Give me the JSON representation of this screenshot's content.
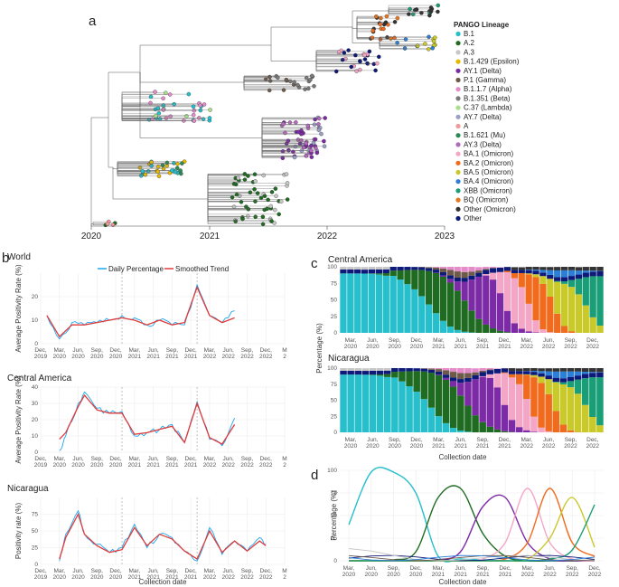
{
  "panels": {
    "a": {
      "letter": "a",
      "years": [
        "2020",
        "2021",
        "2022",
        "2023"
      ],
      "legend_title": "PANGO Lineage",
      "lineages": [
        {
          "name": "B.1",
          "color": "#26bfcb"
        },
        {
          "name": "A.2",
          "color": "#1f6b22"
        },
        {
          "name": "A.3",
          "color": "#c7c7c7"
        },
        {
          "name": "B.1.429 (Epsilon)",
          "color": "#e6b800"
        },
        {
          "name": "AY.1 (Delta)",
          "color": "#7d2aa6"
        },
        {
          "name": "P.1 (Gamma)",
          "color": "#6e5a4a"
        },
        {
          "name": "B.1.1.7 (Alpha)",
          "color": "#e48bc9"
        },
        {
          "name": "B.1.351 (Beta)",
          "color": "#7a7a7a"
        },
        {
          "name": "C.37 (Lambda)",
          "color": "#a8e08a"
        },
        {
          "name": "AY.7 (Delta)",
          "color": "#9aa0c8"
        },
        {
          "name": "A",
          "color": "#f29a9a"
        },
        {
          "name": "B.1.621 (Mu)",
          "color": "#2e8b57"
        },
        {
          "name": "AY.3 (Delta)",
          "color": "#b46bbd"
        },
        {
          "name": "BA.1 (Omicron)",
          "color": "#f4a6c6"
        },
        {
          "name": "BA.2 (Omicron)",
          "color": "#f06b1d"
        },
        {
          "name": "BA.5 (Omicron)",
          "color": "#c9c92a"
        },
        {
          "name": "BA.4 (Omicron)",
          "color": "#2b7fd6"
        },
        {
          "name": "XBB (Omicron)",
          "color": "#1a9e77"
        },
        {
          "name": "BQ (Omicron)",
          "color": "#e8761c"
        },
        {
          "name": "Other (Omicron)",
          "color": "#333333"
        },
        {
          "name": "Other",
          "color": "#0e1a7a"
        }
      ]
    },
    "b": {
      "letter": "b",
      "legend": {
        "daily": "Daily Percentage",
        "smooth": "Smoothed Trend",
        "daily_color": "#1ea5f0",
        "smooth_color": "#e03a3a"
      },
      "xlabel": "Collection date",
      "x_ticks": [
        "Dec,\n2019",
        "Mar,\n2020",
        "Jun,\n2020",
        "Sep,\n2020",
        "Dec,\n2020",
        "Mar,\n2021",
        "Jun,\n2021",
        "Sep,\n2021",
        "Dec,\n2021",
        "Mar,\n2022",
        "Jun,\n2022",
        "Sep,\n2022",
        "Dec,\n2022",
        "M\n2"
      ],
      "subplots": [
        {
          "title": "World",
          "ylabel": "Average Positivity Rate (%)",
          "ylim": [
            0,
            30
          ],
          "yticks": [
            "0",
            "10",
            "20"
          ]
        },
        {
          "title": "Central America",
          "ylabel": "Average Positivity Rate (%)",
          "ylim": [
            0,
            40
          ],
          "yticks": [
            "0",
            "10",
            "20",
            "30",
            "40"
          ]
        },
        {
          "title": "Nicaragua",
          "ylabel": "Positivity rate (%)",
          "ylim": [
            0,
            100
          ],
          "yticks": [
            "0",
            "25",
            "50",
            "75"
          ]
        }
      ]
    },
    "c": {
      "letter": "c",
      "ylabel": "Percentage (%)",
      "xlabel": "Collection date",
      "yticks": [
        "0",
        "25",
        "50",
        "75",
        "100"
      ],
      "x_ticks": [
        "Mar,\n2020",
        "Jun,\n2020",
        "Sep,\n2020",
        "Dec,\n2020",
        "Mar,\n2021",
        "Jun,\n2021",
        "Sep,\n2021",
        "Dec,\n2021",
        "Mar,\n2022",
        "Jun,\n2022",
        "Sep,\n2022",
        "Dec,\n2022"
      ],
      "subplots": [
        {
          "title": "Central America"
        },
        {
          "title": "Nicaragua"
        }
      ]
    },
    "d": {
      "letter": "d",
      "ylabel": "Percentage (%)",
      "xlabel": "Collection date",
      "yticks": [
        "0",
        "25",
        "50",
        "75",
        "100"
      ],
      "x_ticks": [
        "Mar,\n2020",
        "Jun,\n2020",
        "Sep,\n2020",
        "Dec,\n2020",
        "Mar,\n2021",
        "Jun,\n2021",
        "Sep,\n2021",
        "Dec,\n2021",
        "Mar,\n2022",
        "Jun,\n2022",
        "Sep,\n2022",
        "Dec,\n2022"
      ]
    }
  },
  "chart_data": [
    {
      "type": "line",
      "panel": "b-world",
      "x": [
        "2020-01",
        "2020-03",
        "2020-05",
        "2020-07",
        "2020-09",
        "2020-11",
        "2021-01",
        "2021-03",
        "2021-05",
        "2021-07",
        "2021-09",
        "2021-11",
        "2022-01",
        "2022-03",
        "2022-05",
        "2022-07"
      ],
      "series": [
        {
          "name": "Daily Percentage",
          "values": [
            12,
            2,
            9,
            8,
            9,
            10,
            12,
            11,
            8,
            10,
            8,
            8,
            25,
            12,
            9,
            14
          ]
        },
        {
          "name": "Smoothed Trend",
          "values": [
            12,
            3,
            8,
            8,
            9,
            10,
            11,
            10,
            8,
            10,
            8,
            9,
            24,
            12,
            9,
            11
          ]
        }
      ],
      "ylim": [
        0,
        30
      ]
    },
    {
      "type": "line",
      "panel": "b-central-america",
      "x": [
        "2020-03",
        "2020-04",
        "2020-06",
        "2020-07",
        "2020-09",
        "2020-11",
        "2021-01",
        "2021-03",
        "2021-05",
        "2021-07",
        "2021-09",
        "2021-11",
        "2022-01",
        "2022-03",
        "2022-05",
        "2022-07"
      ],
      "series": [
        {
          "name": "Daily Percentage",
          "values": [
            1,
            10,
            30,
            37,
            27,
            24,
            25,
            10,
            12,
            14,
            17,
            6,
            31,
            8,
            4,
            21
          ]
        },
        {
          "name": "Smoothed Trend",
          "values": [
            8,
            12,
            28,
            35,
            26,
            24,
            24,
            11,
            12,
            14,
            16,
            6,
            30,
            9,
            5,
            17
          ]
        }
      ],
      "ylim": [
        0,
        40
      ]
    },
    {
      "type": "line",
      "panel": "b-nicaragua",
      "x": [
        "2020-03",
        "2020-04",
        "2020-06",
        "2020-07",
        "2020-09",
        "2020-11",
        "2021-01",
        "2021-03",
        "2021-05",
        "2021-07",
        "2021-09",
        "2021-11",
        "2022-01",
        "2022-03",
        "2022-05",
        "2022-07",
        "2022-09",
        "2022-11",
        "2022-12"
      ],
      "series": [
        {
          "name": "Daily Percentage",
          "values": [
            5,
            45,
            80,
            45,
            30,
            18,
            25,
            60,
            25,
            45,
            40,
            20,
            5,
            55,
            15,
            35,
            20,
            40,
            30
          ]
        },
        {
          "name": "Smoothed Trend",
          "values": [
            8,
            40,
            75,
            45,
            28,
            18,
            22,
            55,
            28,
            45,
            38,
            20,
            8,
            50,
            18,
            35,
            20,
            35,
            28
          ]
        }
      ],
      "ylim": [
        0,
        100
      ]
    },
    {
      "type": "bar",
      "panel": "c-central-america",
      "stacked": true,
      "months": 37,
      "ylim": [
        0,
        100
      ]
    },
    {
      "type": "bar",
      "panel": "c-nicaragua",
      "stacked": true,
      "months": 36,
      "ylim": [
        0,
        100
      ]
    },
    {
      "type": "line",
      "panel": "d",
      "x": [
        "2020-03",
        "2020-06",
        "2020-09",
        "2020-12",
        "2021-03",
        "2021-06",
        "2021-09",
        "2021-12",
        "2022-03",
        "2022-06",
        "2022-09",
        "2022-12"
      ],
      "series": [
        {
          "name": "B.1",
          "values": [
            40,
            98,
            98,
            75,
            5,
            2,
            1,
            0,
            0,
            0,
            0,
            0
          ]
        },
        {
          "name": "A.2",
          "values": [
            0,
            0,
            1,
            10,
            70,
            80,
            30,
            5,
            0,
            0,
            0,
            0
          ]
        },
        {
          "name": "AY.1 (Delta)",
          "values": [
            0,
            0,
            0,
            0,
            1,
            10,
            60,
            70,
            20,
            2,
            0,
            0
          ]
        },
        {
          "name": "BA.1 (Omicron)",
          "values": [
            0,
            0,
            0,
            0,
            0,
            0,
            2,
            20,
            80,
            20,
            2,
            0
          ]
        },
        {
          "name": "BA.2 (Omicron)",
          "values": [
            0,
            0,
            0,
            0,
            0,
            0,
            0,
            2,
            20,
            80,
            20,
            5
          ]
        },
        {
          "name": "BA.5 (Omicron)",
          "values": [
            0,
            0,
            0,
            0,
            0,
            0,
            0,
            0,
            2,
            25,
            70,
            15
          ]
        },
        {
          "name": "XBB (Omicron)",
          "values": [
            0,
            0,
            0,
            0,
            0,
            0,
            0,
            0,
            0,
            2,
            12,
            62
          ]
        }
      ],
      "ylim": [
        0,
        100
      ]
    }
  ]
}
